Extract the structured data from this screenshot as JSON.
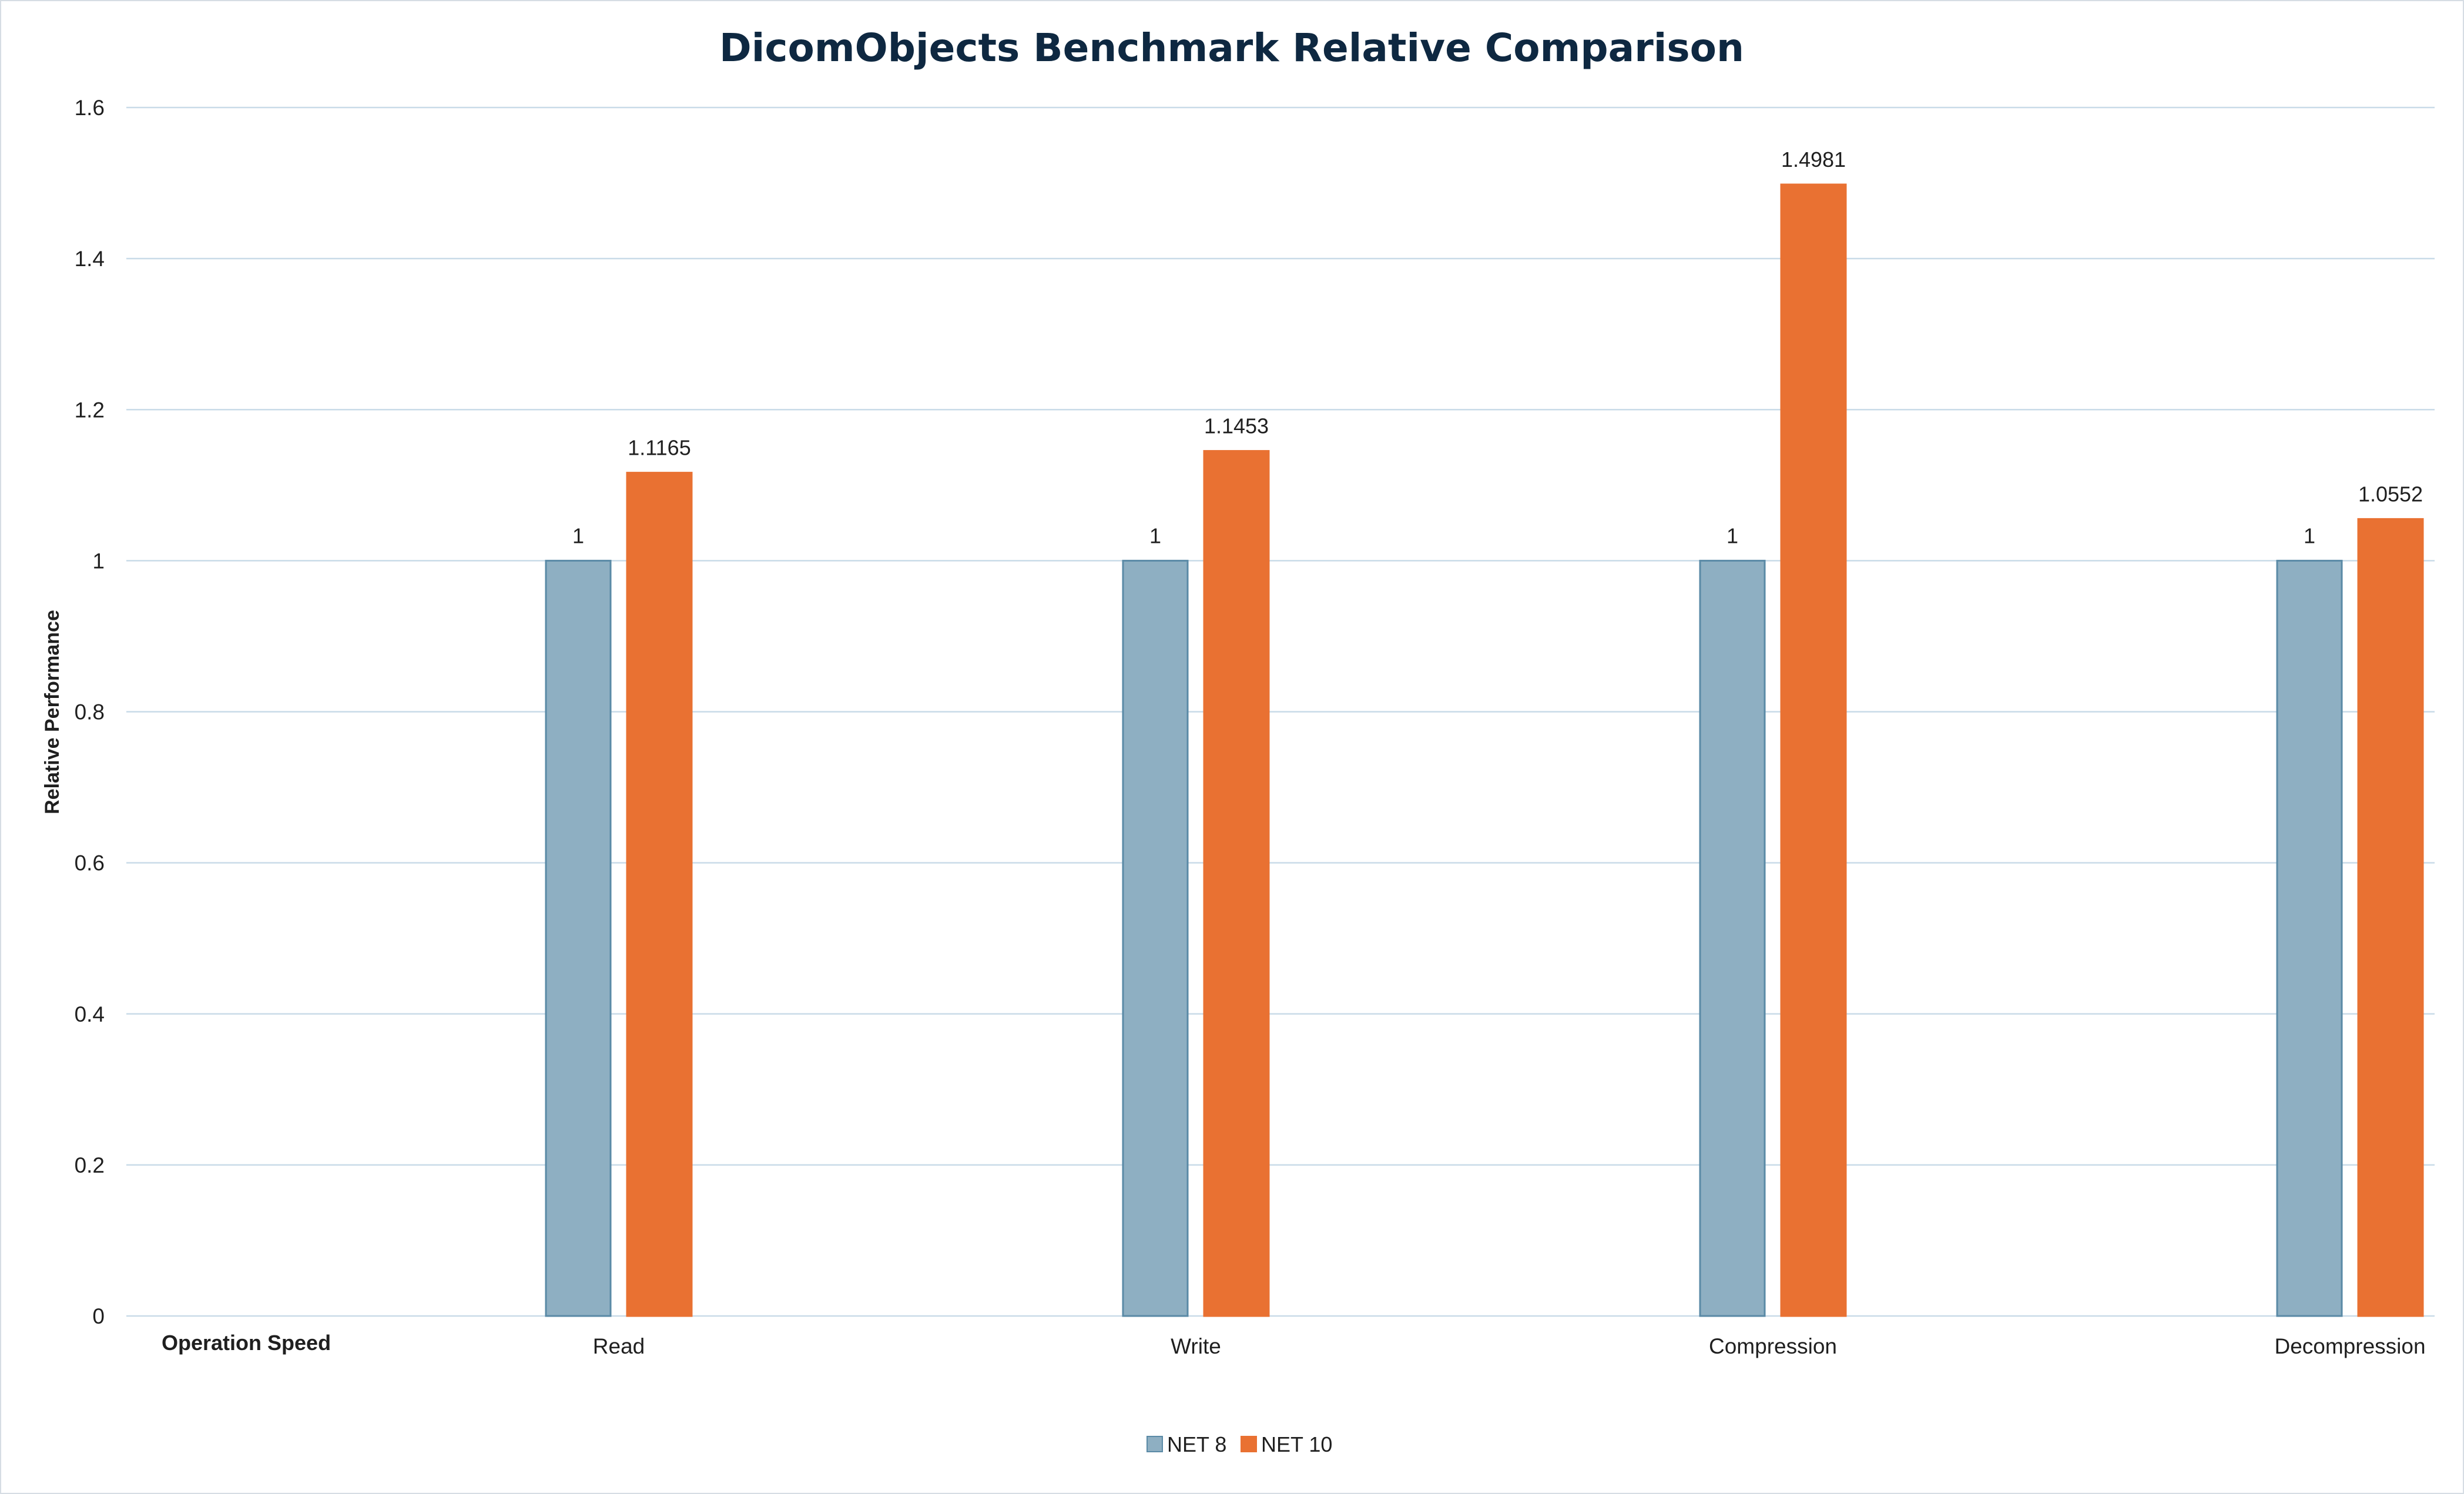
{
  "chart_data": {
    "type": "bar",
    "title": "DicomObjects Benchmark Relative Comparison",
    "xlabel": "Operation Speed",
    "ylabel": "Relative Performance",
    "categories": [
      "Read",
      "Write",
      "Compression",
      "Decompression"
    ],
    "series": [
      {
        "name": "NET 8",
        "values": [
          1,
          1,
          1,
          1
        ],
        "labels": [
          "1",
          "1",
          "1",
          "1"
        ],
        "color": "#8eafc2",
        "stroke": "#5a8aa6"
      },
      {
        "name": "NET 10",
        "values": [
          1.1165,
          1.1453,
          1.4981,
          1.0552
        ],
        "labels": [
          "1.1165",
          "1.1453",
          "1.4981",
          "1.0552"
        ],
        "color": "#e97132",
        "stroke": "#e97132"
      }
    ],
    "ylim": [
      0,
      1.6
    ],
    "yticks": [
      "0",
      "0.2",
      "0.4",
      "0.6",
      "0.8",
      "1",
      "1.2",
      "1.4",
      "1.6"
    ],
    "grid": true,
    "legend_position": "bottom"
  }
}
